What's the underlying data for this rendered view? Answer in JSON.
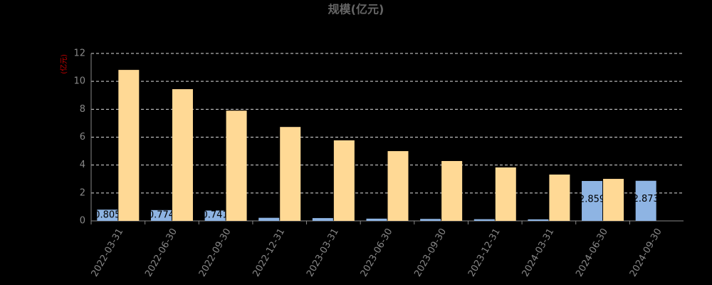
{
  "chart_data": {
    "type": "bar",
    "title": "规模(亿元)",
    "y_label": "(亿元)",
    "categories": [
      "2022-03-31",
      "2022-06-30",
      "2022-09-30",
      "2022-12-31",
      "2023-03-31",
      "2023-06-30",
      "2023-09-30",
      "2023-12-31",
      "2024-03-31",
      "2024-06-30",
      "2024-09-30"
    ],
    "series": [
      {
        "color": "#8eb4e3",
        "values": [
          0.805,
          0.774,
          0.741,
          0.22,
          0.2,
          0.16,
          0.14,
          0.12,
          0.11,
          2.859,
          2.873
        ],
        "value_labels": [
          "0.805",
          "0.774",
          "0.741",
          null,
          null,
          null,
          null,
          null,
          null,
          "2.859",
          "2.873"
        ]
      },
      {
        "color": "#ffd995",
        "values": [
          10.82,
          9.44,
          7.9,
          6.73,
          5.77,
          5.0,
          4.29,
          3.83,
          3.32,
          3.01,
          null
        ]
      }
    ],
    "ylim": [
      0,
      12
    ],
    "yticks": [
      0,
      2,
      4,
      6,
      8,
      10,
      12
    ],
    "grid": true
  }
}
